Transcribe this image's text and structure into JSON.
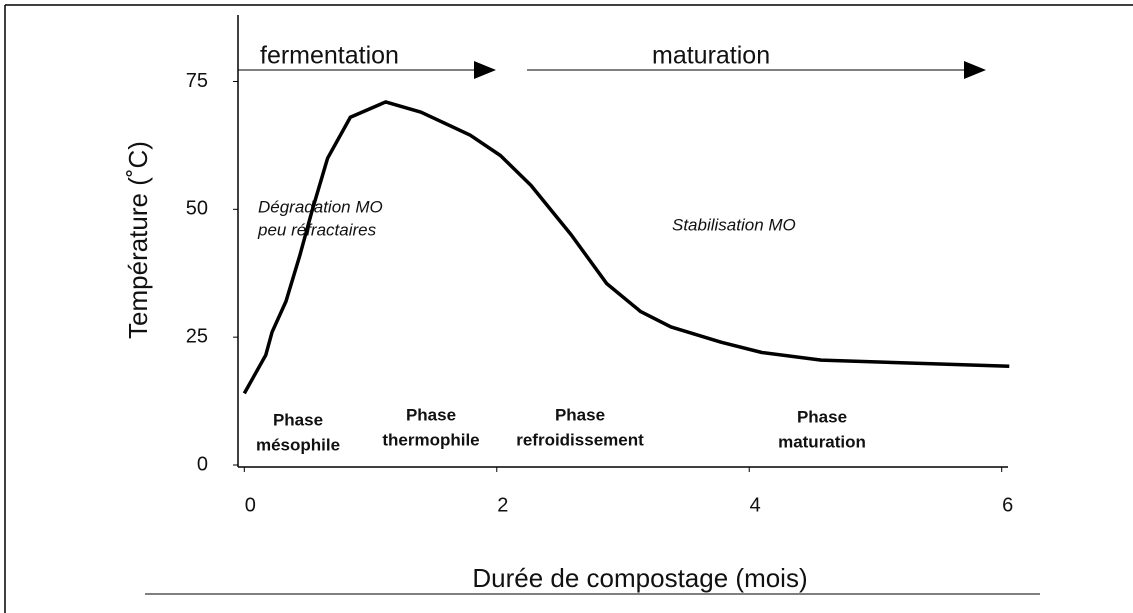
{
  "chart_data": {
    "type": "line",
    "x_label": "Durée de compostage (mois)",
    "y_label": "Température (˚C)",
    "x": [
      0,
      0.17,
      0.22,
      0.33,
      0.44,
      0.54,
      0.66,
      0.84,
      1.12,
      1.4,
      1.79,
      2.03,
      2.27,
      2.59,
      2.87,
      3.14,
      3.38,
      3.78,
      4.1,
      4.57,
      5.2,
      6.06
    ],
    "series": [
      {
        "name": "Température",
        "color": "#000000",
        "values": [
          14,
          21.5,
          26,
          32,
          41,
          50,
          60,
          68,
          71,
          69,
          64.5,
          60.5,
          54.7,
          45,
          35.5,
          30,
          27,
          24,
          22,
          20.5,
          20,
          19.3
        ]
      }
    ],
    "xlim": [
      -0.05,
      6.05
    ],
    "xticks": [
      0,
      2,
      4,
      6
    ],
    "ylim": [
      0,
      88
    ],
    "yticks": [
      0,
      25,
      50,
      75
    ],
    "arrows": [
      "fermentation",
      "maturation"
    ],
    "notes": [
      "Dégradation MO",
      "peu réfractaires",
      "Stabilisation MO"
    ],
    "phases": [
      [
        "Phase",
        "mésophile"
      ],
      [
        "Phase",
        "thermophile"
      ],
      [
        "Phase",
        "refroidissement"
      ],
      [
        "Phase",
        "maturation"
      ]
    ]
  }
}
